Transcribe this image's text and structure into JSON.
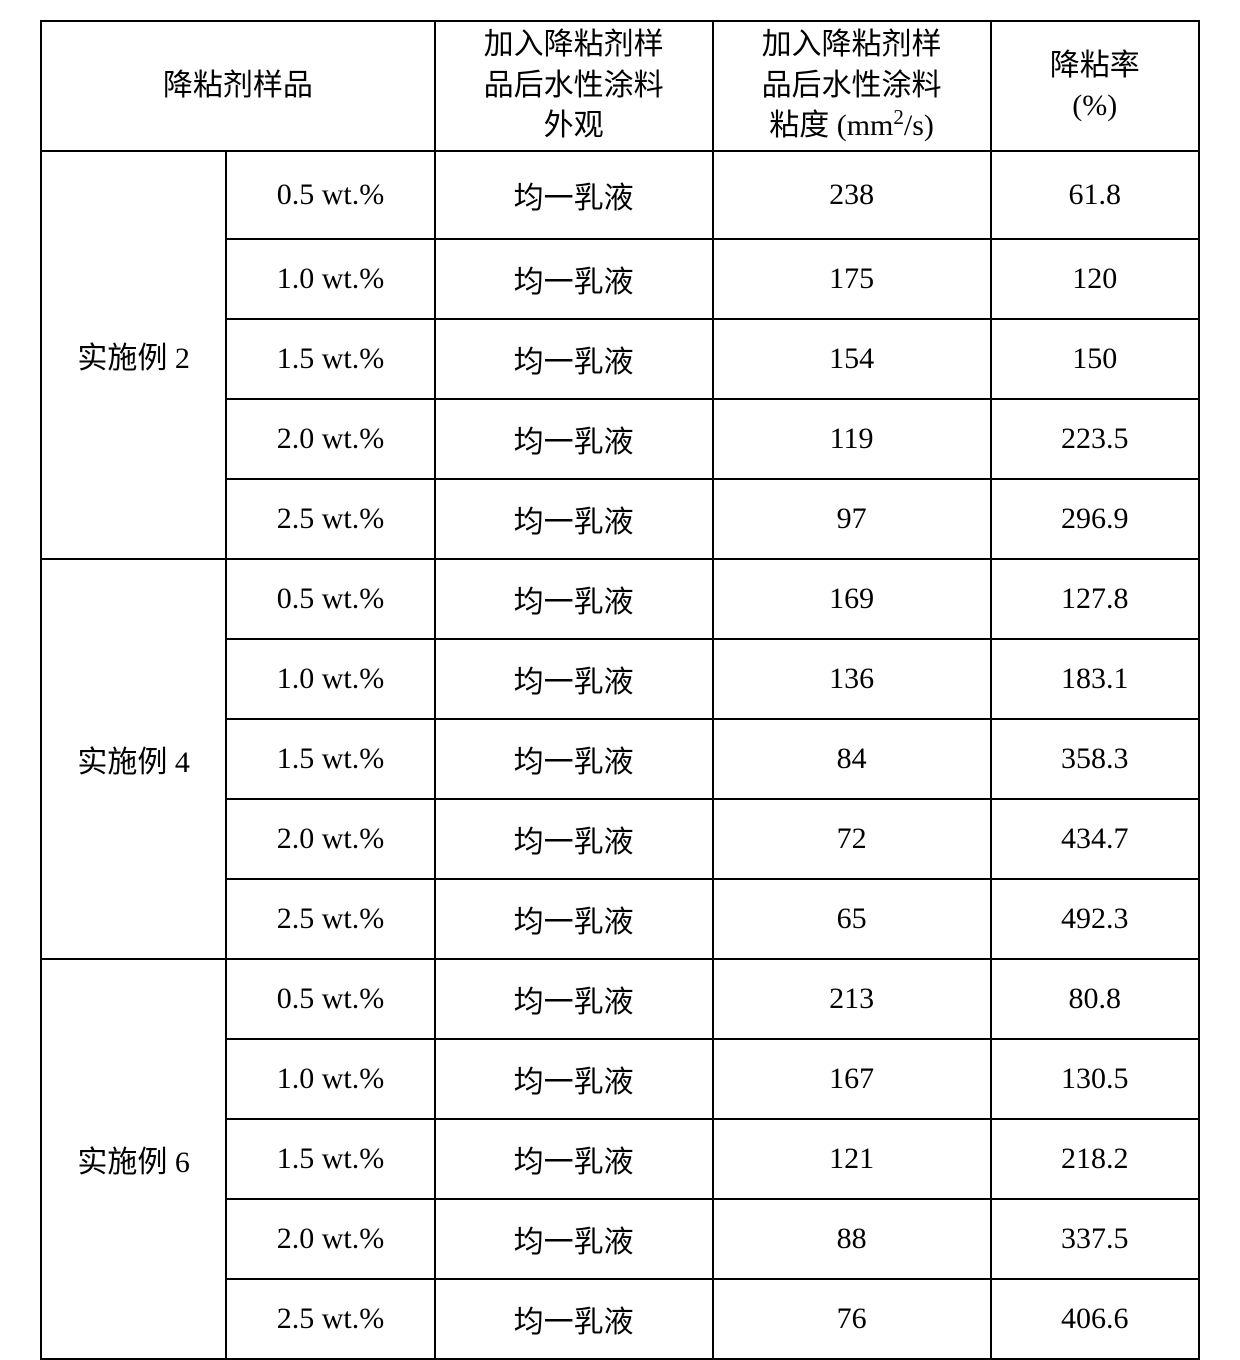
{
  "table": {
    "type": "table",
    "border_color": "#000000",
    "background_color": "#ffffff",
    "text_color": "#000000",
    "font_size_pt": 22,
    "col_widths_pct": [
      16,
      18,
      24,
      24,
      18
    ],
    "header": {
      "sample": "降粘剂样品",
      "appearance_line1": "加入降粘剂样",
      "appearance_line2": "品后水性涂料",
      "appearance_line3": "外观",
      "viscosity_line1": "加入降粘剂样",
      "viscosity_line2": "品后水性涂料",
      "viscosity_line3_prefix": "粘度  (mm",
      "viscosity_line3_sup": "2",
      "viscosity_line3_suffix": "/s)",
      "rate_line1": "降粘率",
      "rate_line2": "(%)"
    },
    "groups": [
      {
        "name": "实施例 2",
        "rows": [
          {
            "conc": "0.5 wt.%",
            "appearance": "均一乳液",
            "viscosity": "238",
            "rate": "61.8",
            "tall": true
          },
          {
            "conc": "1.0 wt.%",
            "appearance": "均一乳液",
            "viscosity": "175",
            "rate": "120"
          },
          {
            "conc": "1.5 wt.%",
            "appearance": "均一乳液",
            "viscosity": "154",
            "rate": "150"
          },
          {
            "conc": "2.0 wt.%",
            "appearance": "均一乳液",
            "viscosity": "119",
            "rate": "223.5"
          },
          {
            "conc": "2.5 wt.%",
            "appearance": "均一乳液",
            "viscosity": "97",
            "rate": "296.9"
          }
        ]
      },
      {
        "name": "实施例 4",
        "rows": [
          {
            "conc": "0.5 wt.%",
            "appearance": "均一乳液",
            "viscosity": "169",
            "rate": "127.8"
          },
          {
            "conc": "1.0 wt.%",
            "appearance": "均一乳液",
            "viscosity": "136",
            "rate": "183.1"
          },
          {
            "conc": "1.5 wt.%",
            "appearance": "均一乳液",
            "viscosity": "84",
            "rate": "358.3"
          },
          {
            "conc": "2.0 wt.%",
            "appearance": "均一乳液",
            "viscosity": "72",
            "rate": "434.7"
          },
          {
            "conc": "2.5 wt.%",
            "appearance": "均一乳液",
            "viscosity": "65",
            "rate": "492.3"
          }
        ]
      },
      {
        "name": "实施例 6",
        "rows": [
          {
            "conc": "0.5 wt.%",
            "appearance": "均一乳液",
            "viscosity": "213",
            "rate": "80.8"
          },
          {
            "conc": "1.0 wt.%",
            "appearance": "均一乳液",
            "viscosity": "167",
            "rate": "130.5"
          },
          {
            "conc": "1.5 wt.%",
            "appearance": "均一乳液",
            "viscosity": "121",
            "rate": "218.2"
          },
          {
            "conc": "2.0 wt.%",
            "appearance": "均一乳液",
            "viscosity": "88",
            "rate": "337.5"
          },
          {
            "conc": "2.5 wt.%",
            "appearance": "均一乳液",
            "viscosity": "76",
            "rate": "406.6"
          }
        ]
      }
    ]
  }
}
